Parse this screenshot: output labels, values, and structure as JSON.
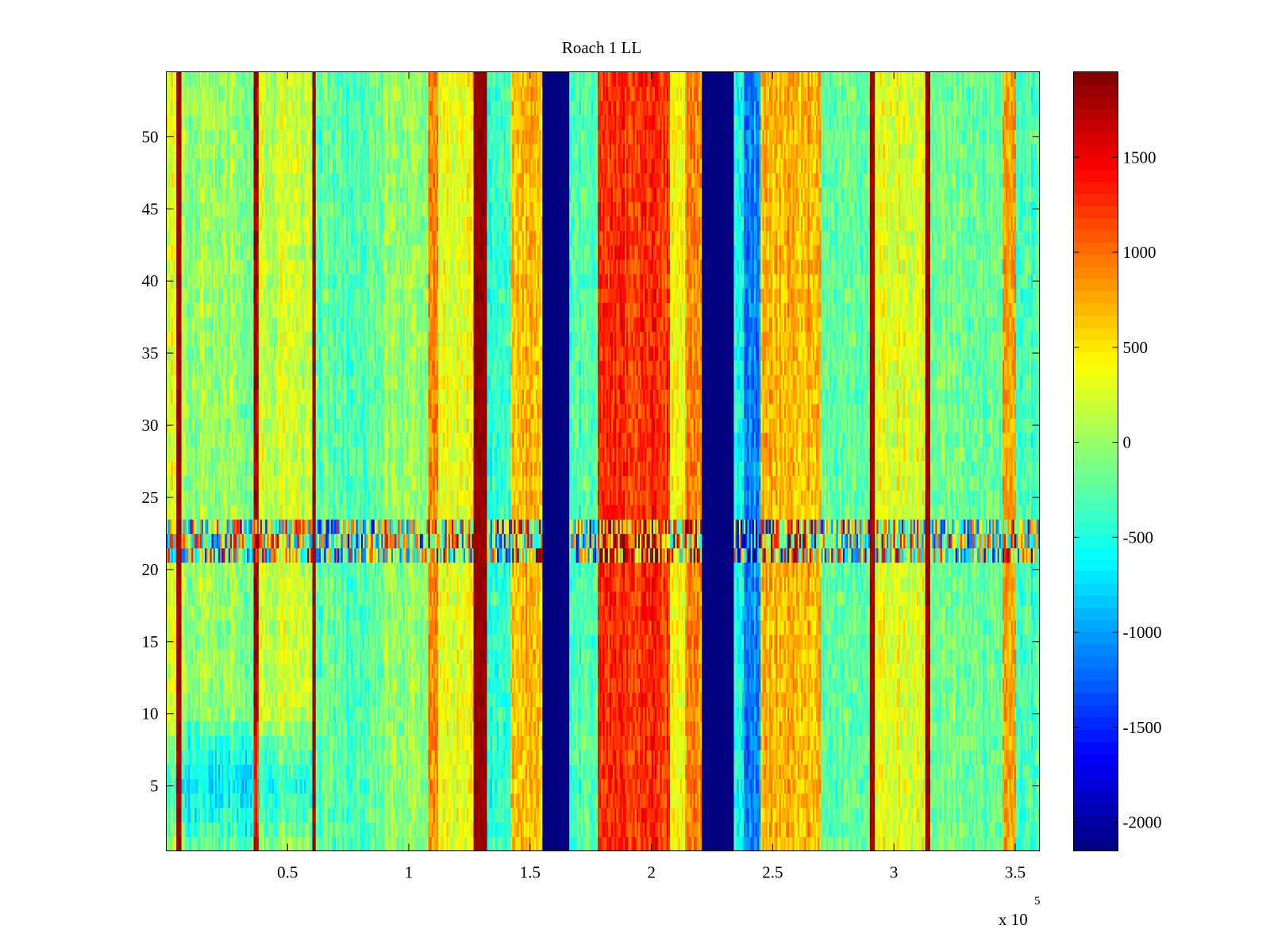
{
  "chart_data": {
    "type": "heatmap",
    "title": "Roach 1 LL",
    "xlabel": "",
    "ylabel": "",
    "x_multiplier_label": "x 10",
    "x_multiplier_exponent": "5",
    "xlim": [
      0,
      360000
    ],
    "ylim": [
      0.5,
      54.5
    ],
    "xticks": [
      {
        "value": 50000,
        "label": "0.5"
      },
      {
        "value": 100000,
        "label": "1"
      },
      {
        "value": 150000,
        "label": "1.5"
      },
      {
        "value": 200000,
        "label": "2"
      },
      {
        "value": 250000,
        "label": "2.5"
      },
      {
        "value": 300000,
        "label": "3"
      },
      {
        "value": 350000,
        "label": "3.5"
      }
    ],
    "yticks": [
      {
        "value": 5,
        "label": "5"
      },
      {
        "value": 10,
        "label": "10"
      },
      {
        "value": 15,
        "label": "15"
      },
      {
        "value": 20,
        "label": "20"
      },
      {
        "value": 25,
        "label": "25"
      },
      {
        "value": 30,
        "label": "30"
      },
      {
        "value": 35,
        "label": "35"
      },
      {
        "value": 40,
        "label": "40"
      },
      {
        "value": 45,
        "label": "45"
      },
      {
        "value": 50,
        "label": "50"
      }
    ],
    "colorbar": {
      "colormap": "jet",
      "clim": [
        -2150,
        1950
      ],
      "ticks": [
        {
          "value": 1500,
          "label": "1500"
        },
        {
          "value": 1000,
          "label": "1000"
        },
        {
          "value": 500,
          "label": "500"
        },
        {
          "value": 0,
          "label": "0"
        },
        {
          "value": -500,
          "label": "-500"
        },
        {
          "value": -1000,
          "label": "-1000"
        },
        {
          "value": -1500,
          "label": "-1500"
        },
        {
          "value": -2000,
          "label": "-2000"
        }
      ]
    },
    "rows": 54,
    "column_bins_approx": 520,
    "background_level": 0,
    "noise_amplitude": 380,
    "column_bands": [
      {
        "x_start": 0,
        "x_end": 4000,
        "level": 300
      },
      {
        "x_start": 4000,
        "x_end": 6000,
        "level": 1900
      },
      {
        "x_start": 6000,
        "x_end": 30000,
        "level": 0
      },
      {
        "x_start": 30000,
        "x_end": 36000,
        "level": -100
      },
      {
        "x_start": 36000,
        "x_end": 38000,
        "level": 1800
      },
      {
        "x_start": 38000,
        "x_end": 60000,
        "level": 200
      },
      {
        "x_start": 60000,
        "x_end": 61500,
        "level": 1900
      },
      {
        "x_start": 61500,
        "x_end": 90000,
        "level": -250
      },
      {
        "x_start": 90000,
        "x_end": 108000,
        "level": 0
      },
      {
        "x_start": 108000,
        "x_end": 112000,
        "level": 800
      },
      {
        "x_start": 112000,
        "x_end": 127000,
        "level": 350
      },
      {
        "x_start": 127000,
        "x_end": 132000,
        "level": 1950
      },
      {
        "x_start": 132000,
        "x_end": 142000,
        "level": -450
      },
      {
        "x_start": 142000,
        "x_end": 155000,
        "level": 650
      },
      {
        "x_start": 155000,
        "x_end": 166000,
        "level": -2150
      },
      {
        "x_start": 166000,
        "x_end": 178000,
        "level": -300
      },
      {
        "x_start": 178000,
        "x_end": 208000,
        "level": 1250
      },
      {
        "x_start": 208000,
        "x_end": 214000,
        "level": 400
      },
      {
        "x_start": 214000,
        "x_end": 221000,
        "level": 850
      },
      {
        "x_start": 221000,
        "x_end": 234000,
        "level": -2150
      },
      {
        "x_start": 234000,
        "x_end": 238000,
        "level": -500
      },
      {
        "x_start": 238000,
        "x_end": 245000,
        "level": -1100
      },
      {
        "x_start": 245000,
        "x_end": 270000,
        "level": 700
      },
      {
        "x_start": 270000,
        "x_end": 290000,
        "level": -250
      },
      {
        "x_start": 290000,
        "x_end": 292000,
        "level": 1900
      },
      {
        "x_start": 292000,
        "x_end": 313000,
        "level": 300
      },
      {
        "x_start": 313000,
        "x_end": 315000,
        "level": 1900
      },
      {
        "x_start": 315000,
        "x_end": 345000,
        "level": -150
      },
      {
        "x_start": 345000,
        "x_end": 350000,
        "level": 700
      },
      {
        "x_start": 350000,
        "x_end": 360000,
        "level": -300
      }
    ],
    "row_anomalies": [
      {
        "row_start": 21,
        "row_end": 23,
        "description": "high-variance stripe of alternating blue/dark-red cells",
        "amplitude": 1500
      },
      {
        "row_start": 1,
        "row_end": 9,
        "x_start": 0,
        "x_end": 60000,
        "level_offset": -700
      }
    ]
  }
}
